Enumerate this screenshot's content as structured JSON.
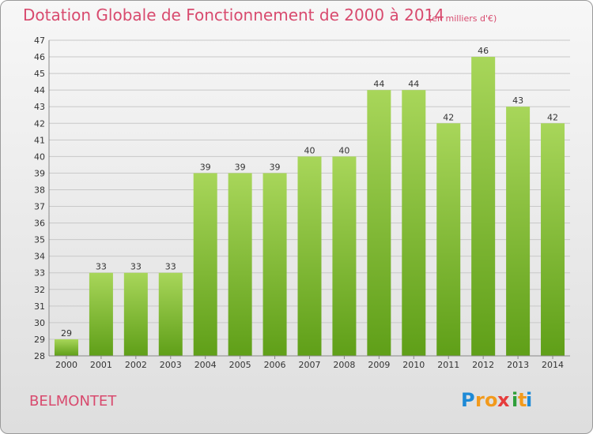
{
  "title": "Dotation Globale de Fonctionnement de 2000 à 2014",
  "subtitle": "(en milliers d'€)",
  "commune": "BELMONTET",
  "brand": {
    "name": "Proxiti",
    "letters": [
      "P",
      "r",
      "o",
      "x",
      "i",
      "t",
      "i"
    ]
  },
  "colors": {
    "title": "#d84a6e",
    "bar_top": "#a8d65a",
    "bar_bottom": "#5f9f18",
    "brand_letters": [
      "#1e8ad6",
      "#f29a1c",
      "#f29a1c",
      "#e63c3c",
      "#2f9f3a",
      "#f29a1c",
      "#1e8ad6"
    ]
  },
  "chart_data": {
    "type": "bar",
    "categories": [
      "2000",
      "2001",
      "2002",
      "2003",
      "2004",
      "2005",
      "2006",
      "2007",
      "2008",
      "2009",
      "2010",
      "2011",
      "2012",
      "2013",
      "2014"
    ],
    "values": [
      29,
      33,
      33,
      33,
      39,
      39,
      39,
      40,
      40,
      44,
      44,
      42,
      46,
      43,
      42
    ],
    "title": "Dotation Globale de Fonctionnement de 2000 à 2014",
    "subtitle": "(en milliers d'€)",
    "xlabel": "",
    "ylabel": "",
    "ylim": [
      28,
      47
    ],
    "yticks": [
      28,
      29,
      30,
      31,
      32,
      33,
      34,
      35,
      36,
      37,
      38,
      39,
      40,
      41,
      42,
      43,
      44,
      45,
      46,
      47
    ],
    "grid": true,
    "legend": "none"
  }
}
